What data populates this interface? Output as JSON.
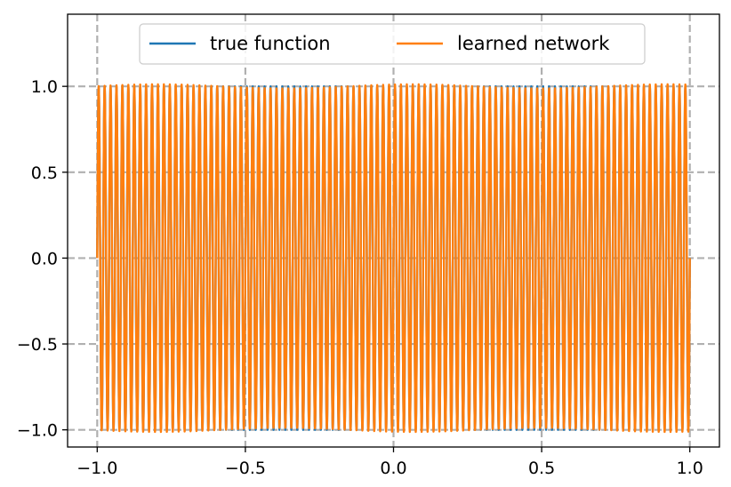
{
  "chart_data": {
    "type": "line",
    "title": "",
    "xlabel": "",
    "ylabel": "",
    "xlim": [
      -1.1,
      1.1
    ],
    "ylim": [
      -1.1,
      1.42
    ],
    "xticks": [
      -1.0,
      -0.5,
      0.0,
      0.5,
      1.0
    ],
    "xtick_labels": [
      "−1.0",
      "−0.5",
      "0.0",
      "0.5",
      "1.0"
    ],
    "yticks": [
      -1.0,
      -0.5,
      0.0,
      0.5,
      1.0
    ],
    "ytick_labels": [
      "−1.0",
      "−0.5",
      "0.0",
      "0.5",
      "1.0"
    ],
    "grid": true,
    "grid_style": "dashed",
    "legend_position": "top-center",
    "function": "sin(100*pi*x)",
    "x_range": [
      -1.0,
      1.0
    ],
    "series": [
      {
        "name": "true function",
        "color": "#1f77b4",
        "values_note": ""
      },
      {
        "name": "learned network",
        "color": "#ff7f0e"
      }
    ]
  }
}
